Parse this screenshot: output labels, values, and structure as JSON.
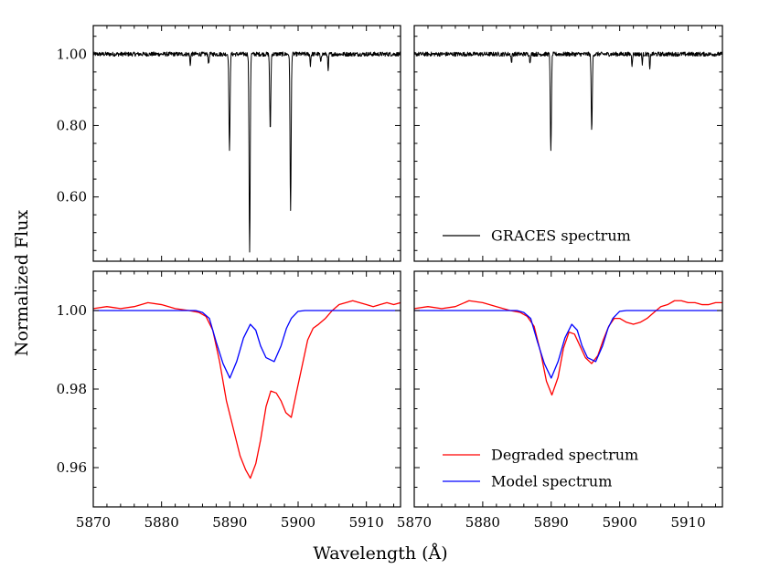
{
  "figure": {
    "ylabel": "Normalized Flux",
    "xlabel": "Wavelength (Å)",
    "colors": {
      "graces": "#000000",
      "degraded": "#ff0000",
      "model": "#0000ff"
    }
  },
  "chart_data": [
    {
      "type": "line",
      "panel": "top-left",
      "xlim": [
        5870,
        5915
      ],
      "ylim": [
        0.42,
        1.08
      ],
      "xticks": [
        5870,
        5880,
        5890,
        5900,
        5910
      ],
      "yticks": [
        0.6,
        0.8,
        1.0
      ],
      "ytick_labels": [
        "0.60",
        "0.80",
        "1.00"
      ],
      "series": [
        {
          "name": "GRACES spectrum",
          "noise": 0.006,
          "lines": [
            [
              5889.95,
              0.275,
              0.08
            ],
            [
              5892.9,
              0.56,
              0.08
            ],
            [
              5895.92,
              0.215,
              0.08
            ],
            [
              5898.9,
              0.44,
              0.08
            ],
            [
              5884.2,
              0.03,
              0.06
            ],
            [
              5886.9,
              0.03,
              0.06
            ],
            [
              5901.8,
              0.03,
              0.06
            ],
            [
              5903.3,
              0.025,
              0.06
            ],
            [
              5904.4,
              0.05,
              0.06
            ]
          ]
        }
      ]
    },
    {
      "type": "line",
      "panel": "top-right",
      "xlim": [
        5870,
        5915
      ],
      "ylim": [
        0.42,
        1.08
      ],
      "xticks": [
        5870,
        5880,
        5890,
        5900,
        5910
      ],
      "yticks": [
        0.6,
        0.8,
        1.0
      ],
      "legend": {
        "position": "lower-right",
        "entries": [
          "GRACES spectrum"
        ]
      },
      "series": [
        {
          "name": "GRACES spectrum",
          "noise": 0.006,
          "lines": [
            [
              5889.95,
              0.275,
              0.08
            ],
            [
              5895.92,
              0.215,
              0.08
            ],
            [
              5884.2,
              0.025,
              0.06
            ],
            [
              5886.9,
              0.025,
              0.06
            ],
            [
              5901.8,
              0.03,
              0.06
            ],
            [
              5903.3,
              0.025,
              0.06
            ],
            [
              5904.4,
              0.045,
              0.06
            ]
          ]
        }
      ]
    },
    {
      "type": "line",
      "panel": "bottom-left",
      "xlim": [
        5870,
        5915
      ],
      "ylim": [
        0.95,
        1.01
      ],
      "xticks": [
        5870,
        5880,
        5890,
        5900,
        5910
      ],
      "xtick_labels": [
        "5870",
        "5880",
        "5890",
        "5900",
        "5910"
      ],
      "yticks": [
        0.96,
        0.98,
        1.0
      ],
      "ytick_labels": [
        "0.96",
        "0.98",
        "1.00"
      ],
      "series": [
        {
          "name": "Degraded spectrum",
          "x": [
            5870,
            5872,
            5874,
            5876,
            5878,
            5880,
            5882,
            5884,
            5885.5,
            5886.5,
            5887.5,
            5888.5,
            5889.5,
            5890.5,
            5891.5,
            5892.3,
            5893,
            5893.8,
            5894.5,
            5895.3,
            5896,
            5896.8,
            5897.5,
            5898.2,
            5899,
            5899.8,
            5900.6,
            5901.4,
            5902.2,
            5903,
            5904,
            5905,
            5906,
            5907,
            5908,
            5909,
            5910,
            5911,
            5912,
            5913,
            5914,
            5915
          ],
          "y": [
            1.0005,
            1.001,
            1.0005,
            1.001,
            1.002,
            1.0015,
            1.0005,
            1.0,
            0.9995,
            0.9985,
            0.995,
            0.987,
            0.977,
            0.97,
            0.963,
            0.9595,
            0.9573,
            0.961,
            0.967,
            0.9755,
            0.9795,
            0.979,
            0.977,
            0.974,
            0.9728,
            0.9795,
            0.986,
            0.9925,
            0.9955,
            0.9965,
            0.998,
            1.0,
            1.0015,
            1.002,
            1.0025,
            1.002,
            1.0015,
            1.001,
            1.0015,
            1.002,
            1.0015,
            1.002
          ]
        },
        {
          "name": "Model spectrum",
          "x": [
            5870,
            5885,
            5886,
            5887,
            5888,
            5889,
            5890,
            5891,
            5892,
            5893,
            5893.8,
            5894.5,
            5895.3,
            5896.5,
            5897.5,
            5898.3,
            5899,
            5900,
            5901,
            5915
          ],
          "y": [
            1.0,
            1.0,
            0.9995,
            0.998,
            0.992,
            0.9865,
            0.9828,
            0.987,
            0.993,
            0.9965,
            0.995,
            0.991,
            0.988,
            0.987,
            0.991,
            0.9955,
            0.998,
            0.9998,
            1.0,
            1.0
          ]
        }
      ]
    },
    {
      "type": "line",
      "panel": "bottom-right",
      "xlim": [
        5870,
        5915
      ],
      "ylim": [
        0.95,
        1.01
      ],
      "xticks": [
        5870,
        5880,
        5890,
        5900,
        5910
      ],
      "xtick_labels": [
        "5870",
        "5880",
        "5890",
        "5900",
        "5910"
      ],
      "yticks": [
        0.96,
        0.98,
        1.0
      ],
      "legend": {
        "position": "lower-right",
        "entries": [
          "Degraded spectrum",
          "Model spectrum"
        ]
      },
      "series": [
        {
          "name": "Degraded spectrum",
          "x": [
            5870,
            5872,
            5874,
            5876,
            5878,
            5880,
            5882,
            5884,
            5885.5,
            5886.5,
            5887.5,
            5888.5,
            5889.3,
            5890.1,
            5891,
            5891.8,
            5892.6,
            5893.4,
            5894.2,
            5895,
            5895.9,
            5896.8,
            5897.6,
            5898.4,
            5899.2,
            5900,
            5901,
            5902,
            5903,
            5904,
            5905,
            5906,
            5907,
            5908,
            5909,
            5910,
            5911,
            5912,
            5913,
            5914,
            5915
          ],
          "y": [
            1.0005,
            1.001,
            1.0005,
            1.001,
            1.0025,
            1.002,
            1.001,
            1.0,
            0.9995,
            0.9985,
            0.996,
            0.989,
            0.982,
            0.9785,
            0.983,
            0.9905,
            0.9945,
            0.994,
            0.991,
            0.988,
            0.9865,
            0.9885,
            0.9925,
            0.996,
            0.998,
            0.998,
            0.997,
            0.9965,
            0.997,
            0.998,
            0.9995,
            1.001,
            1.0015,
            1.0025,
            1.0025,
            1.002,
            1.002,
            1.0015,
            1.0015,
            1.002,
            1.002
          ]
        },
        {
          "name": "Model spectrum",
          "x": [
            5870,
            5885,
            5886,
            5887,
            5888,
            5889,
            5890,
            5891,
            5892,
            5893,
            5893.8,
            5894.5,
            5895.3,
            5896.5,
            5897.5,
            5898.3,
            5899,
            5900,
            5901,
            5915
          ],
          "y": [
            1.0,
            1.0,
            0.9995,
            0.998,
            0.992,
            0.9865,
            0.9828,
            0.987,
            0.993,
            0.9965,
            0.995,
            0.991,
            0.988,
            0.987,
            0.991,
            0.9955,
            0.998,
            0.9998,
            1.0,
            1.0
          ]
        }
      ]
    }
  ]
}
